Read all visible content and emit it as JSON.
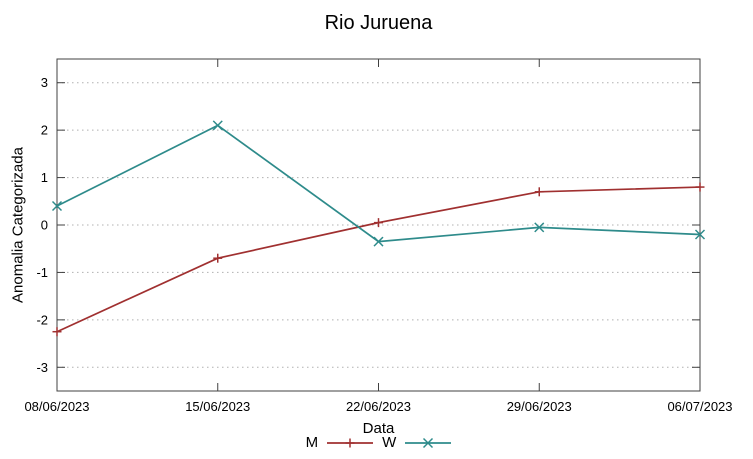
{
  "chart_data": {
    "type": "line",
    "title": "Rio Juruena",
    "xlabel": "Data",
    "ylabel": "Anomalia Categorizada",
    "categories": [
      "08/06/2023",
      "15/06/2023",
      "22/06/2023",
      "29/06/2023",
      "06/07/2023"
    ],
    "series": [
      {
        "name": "M",
        "marker": "plus",
        "color": "#a03030",
        "values": [
          -2.25,
          -0.7,
          0.05,
          0.7,
          0.8
        ]
      },
      {
        "name": "W",
        "marker": "cross",
        "color": "#2e8b8b",
        "values": [
          0.4,
          2.1,
          -0.35,
          -0.05,
          -0.2
        ]
      }
    ],
    "ylim": [
      -3.5,
      3.5
    ],
    "yticks": [
      -3,
      -2,
      -1,
      0,
      1,
      2,
      3
    ],
    "grid": "horizontal-dotted",
    "legend_position": "bottom-center",
    "colors": {
      "grid": "#b0b0b0",
      "axis": "#404040",
      "text": "#000000",
      "background": "#ffffff"
    }
  }
}
